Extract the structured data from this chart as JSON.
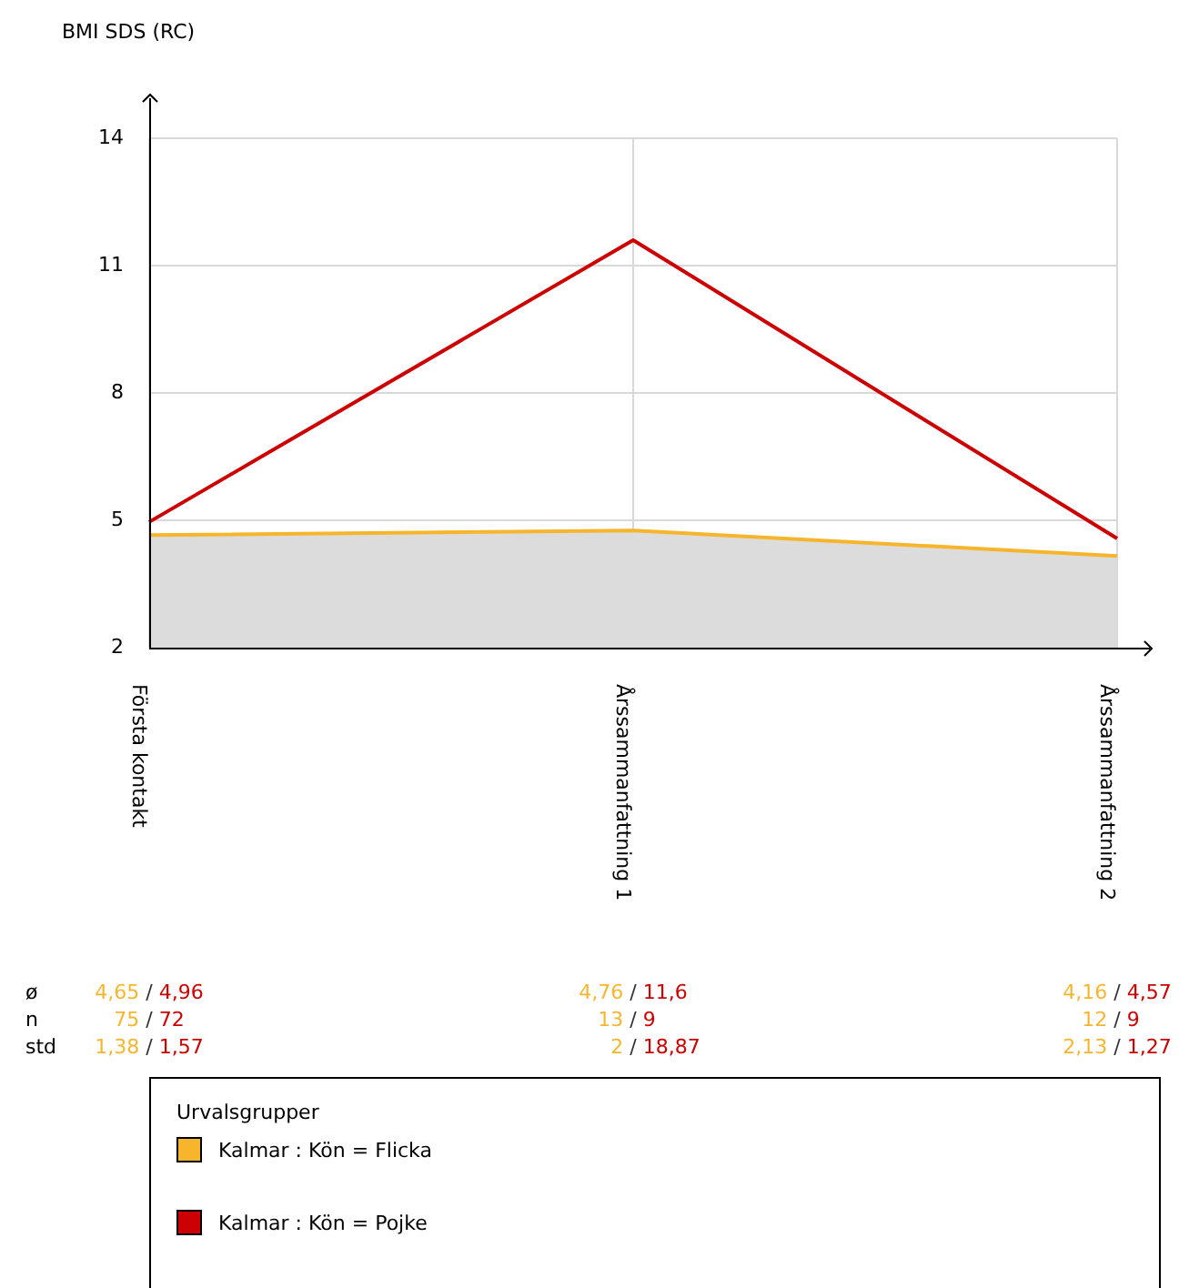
{
  "chart_data": {
    "type": "line",
    "ylabel": "BMI SDS (RC)",
    "legend_title": "Urvalsgrupper",
    "categories": [
      "Första kontakt",
      "Årssammanfattning 1",
      "Årssammanfattning 2"
    ],
    "series": [
      {
        "name": "Kalmar : Kön = Flicka",
        "type": "area",
        "color": "#f7b52c",
        "values": [
          4.65,
          4.76,
          4.16
        ]
      },
      {
        "name": "Kalmar : Kön = Pojke",
        "type": "line",
        "color": "#cc0000",
        "values": [
          4.96,
          11.6,
          4.57
        ]
      }
    ],
    "ylim": [
      2,
      14
    ],
    "yticks": [
      2,
      5,
      8,
      11,
      14
    ],
    "grid": true,
    "legend": "bottom",
    "marker": "none",
    "annotations": [
      "ø",
      "n",
      "std",
      "4,65 / 4,96",
      "75 / 72",
      "1,38 / 1,57",
      "4,76 / 11,6",
      "13 / 9",
      "2 / 18,87",
      "4,16 / 4,57",
      "12 / 9",
      "2,13 / 1,27"
    ]
  }
}
